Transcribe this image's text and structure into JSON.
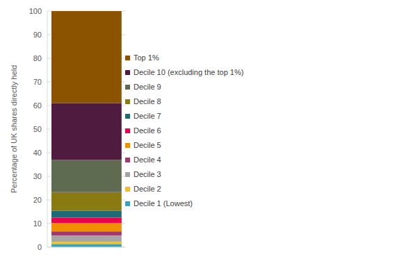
{
  "chart_data": {
    "type": "bar",
    "y_label": "Percentage of UK shares directly held",
    "categories": [
      null
    ],
    "stacked": true,
    "grid": true,
    "legend": "right",
    "ylim": [
      0,
      100
    ],
    "yticks": [
      0,
      10,
      20,
      30,
      40,
      50,
      60,
      70,
      80,
      90,
      100
    ],
    "series": [
      {
        "name": "Decile 1 (Lowest)",
        "color": "#3ba3b8",
        "values": [
          1.2
        ]
      },
      {
        "name": "Decile 2",
        "color": "#f2c314",
        "values": [
          1.1
        ]
      },
      {
        "name": "Decile 3",
        "color": "#a5a5a5",
        "values": [
          2.7
        ]
      },
      {
        "name": "Decile 4",
        "color": "#9e3b6e",
        "values": [
          1.7
        ]
      },
      {
        "name": "Decile 5",
        "color": "#f28e00",
        "values": [
          3.5
        ]
      },
      {
        "name": "Decile 6",
        "color": "#e8004c",
        "values": [
          2.3
        ]
      },
      {
        "name": "Decile 7",
        "color": "#1f6b75",
        "values": [
          2.9
        ]
      },
      {
        "name": "Decile 8",
        "color": "#8a7a12",
        "values": [
          7.9
        ]
      },
      {
        "name": "Decile 9",
        "color": "#5e6b50",
        "values": [
          13.7
        ]
      },
      {
        "name": "Decile 10 (excluding the top 1%)",
        "color": "#4f1b3e",
        "values": [
          24
        ]
      },
      {
        "name": "Top 1%",
        "color": "#8b5200",
        "values": [
          39
        ]
      }
    ]
  }
}
